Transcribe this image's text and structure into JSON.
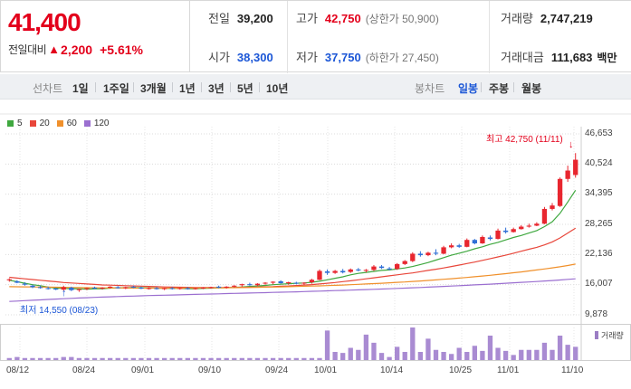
{
  "quote": {
    "price": "41,400",
    "change_label": "전일대비",
    "change_symbol": "▲",
    "change_amount": "2,200",
    "change_percent": "+5.61%"
  },
  "stats": {
    "prev_close_label": "전일",
    "prev_close": "39,200",
    "high_label": "고가",
    "high": "42,750",
    "upper_limit": "(상한가 50,900)",
    "volume_label": "거래량",
    "volume": "2,747,219",
    "open_label": "시가",
    "open": "38,300",
    "low_label": "저가",
    "low": "37,750",
    "lower_limit": "(하한가 27,450)",
    "turnover_label": "거래대금",
    "turnover": "111,683",
    "turnover_unit": "백만"
  },
  "toolbar": {
    "line_chart_label": "선차트",
    "periods": [
      "1일",
      "1주일",
      "3개월",
      "1년",
      "3년",
      "5년",
      "10년"
    ],
    "candle_chart_label": "봉차트",
    "candle_periods": [
      "일봉",
      "주봉",
      "월봉"
    ],
    "candle_selected": "일봉"
  },
  "legend": [
    {
      "name": "5",
      "color": "#3fa83f"
    },
    {
      "name": "20",
      "color": "#e8463a"
    },
    {
      "name": "60",
      "color": "#f0902b"
    },
    {
      "name": "120",
      "color": "#9b6fd0"
    }
  ],
  "annotations": {
    "max_label": "최고 42,750 (11/11)",
    "min_label": "최저 14,550 (08/23)",
    "max_arrow": "↓",
    "min_arrow": "↑"
  },
  "volume_label": "거래량",
  "chart_data": {
    "type": "candlestick",
    "y_ticks": [
      "46,653",
      "40,524",
      "34,395",
      "28,265",
      "22,136",
      "16,007",
      "9,878"
    ],
    "ylim": [
      9878,
      46653
    ],
    "x_ticks": [
      "08/12",
      "08/24",
      "09/01",
      "09/10",
      "09/24",
      "10/01",
      "10/14",
      "10/25",
      "11/01",
      "11/10"
    ],
    "candles": [
      {
        "o": 16900,
        "h": 17300,
        "l": 16600,
        "c": 17100
      },
      {
        "o": 16700,
        "h": 16900,
        "l": 16300,
        "c": 16400
      },
      {
        "o": 16200,
        "h": 16500,
        "l": 15800,
        "c": 16000
      },
      {
        "o": 15800,
        "h": 16000,
        "l": 15300,
        "c": 15500
      },
      {
        "o": 15500,
        "h": 15800,
        "l": 15200,
        "c": 15400
      },
      {
        "o": 15300,
        "h": 15600,
        "l": 15000,
        "c": 15200
      },
      {
        "o": 15200,
        "h": 15400,
        "l": 14900,
        "c": 15000
      },
      {
        "o": 15000,
        "h": 15800,
        "l": 14800,
        "c": 15500
      },
      {
        "o": 15400,
        "h": 15600,
        "l": 14700,
        "c": 14900
      },
      {
        "o": 14900,
        "h": 15200,
        "l": 14550,
        "c": 15100
      },
      {
        "o": 15200,
        "h": 15400,
        "l": 14900,
        "c": 15300
      },
      {
        "o": 15400,
        "h": 15600,
        "l": 15100,
        "c": 15200
      },
      {
        "o": 15200,
        "h": 15500,
        "l": 15000,
        "c": 15400
      },
      {
        "o": 15400,
        "h": 15700,
        "l": 15200,
        "c": 15600
      },
      {
        "o": 15500,
        "h": 15700,
        "l": 15200,
        "c": 15300
      },
      {
        "o": 15300,
        "h": 15600,
        "l": 15100,
        "c": 15500
      },
      {
        "o": 15600,
        "h": 15800,
        "l": 15300,
        "c": 15400
      },
      {
        "o": 15400,
        "h": 15600,
        "l": 15100,
        "c": 15200
      },
      {
        "o": 15200,
        "h": 15500,
        "l": 15000,
        "c": 15300
      },
      {
        "o": 15300,
        "h": 15500,
        "l": 15000,
        "c": 15100
      },
      {
        "o": 15100,
        "h": 15400,
        "l": 14900,
        "c": 15300
      },
      {
        "o": 15300,
        "h": 15500,
        "l": 15000,
        "c": 15200
      },
      {
        "o": 15200,
        "h": 15400,
        "l": 15000,
        "c": 15300
      },
      {
        "o": 15300,
        "h": 15500,
        "l": 15000,
        "c": 15100
      },
      {
        "o": 15100,
        "h": 15400,
        "l": 15000,
        "c": 15300
      },
      {
        "o": 15300,
        "h": 15500,
        "l": 15100,
        "c": 15400
      },
      {
        "o": 15400,
        "h": 15600,
        "l": 15200,
        "c": 15500
      },
      {
        "o": 15600,
        "h": 15800,
        "l": 15300,
        "c": 15400
      },
      {
        "o": 15400,
        "h": 15700,
        "l": 15200,
        "c": 15600
      },
      {
        "o": 15600,
        "h": 15900,
        "l": 15400,
        "c": 15800
      },
      {
        "o": 15900,
        "h": 16200,
        "l": 15600,
        "c": 16100
      },
      {
        "o": 16100,
        "h": 16400,
        "l": 15800,
        "c": 15900
      },
      {
        "o": 15900,
        "h": 16300,
        "l": 15700,
        "c": 16200
      },
      {
        "o": 16300,
        "h": 16500,
        "l": 16000,
        "c": 16400
      },
      {
        "o": 16400,
        "h": 16700,
        "l": 16100,
        "c": 16600
      },
      {
        "o": 16700,
        "h": 16900,
        "l": 16200,
        "c": 16300
      },
      {
        "o": 16300,
        "h": 16600,
        "l": 16000,
        "c": 16500
      },
      {
        "o": 16400,
        "h": 16600,
        "l": 16100,
        "c": 16300
      },
      {
        "o": 16300,
        "h": 16500,
        "l": 16000,
        "c": 16400
      },
      {
        "o": 16500,
        "h": 17200,
        "l": 16200,
        "c": 17000
      },
      {
        "o": 17000,
        "h": 19100,
        "l": 16900,
        "c": 18800
      },
      {
        "o": 18700,
        "h": 19100,
        "l": 18000,
        "c": 18400
      },
      {
        "o": 18400,
        "h": 19000,
        "l": 18200,
        "c": 18800
      },
      {
        "o": 18800,
        "h": 19200,
        "l": 18300,
        "c": 18500
      },
      {
        "o": 18600,
        "h": 19300,
        "l": 18400,
        "c": 19100
      },
      {
        "o": 19100,
        "h": 19400,
        "l": 18700,
        "c": 18900
      },
      {
        "o": 18900,
        "h": 19200,
        "l": 18500,
        "c": 19000
      },
      {
        "o": 19000,
        "h": 20000,
        "l": 18800,
        "c": 19700
      },
      {
        "o": 19700,
        "h": 20000,
        "l": 19200,
        "c": 19400
      },
      {
        "o": 19300,
        "h": 19600,
        "l": 18900,
        "c": 19100
      },
      {
        "o": 19200,
        "h": 20400,
        "l": 19000,
        "c": 20200
      },
      {
        "o": 20200,
        "h": 21000,
        "l": 20000,
        "c": 20800
      },
      {
        "o": 20800,
        "h": 22600,
        "l": 20600,
        "c": 22300
      },
      {
        "o": 22300,
        "h": 22800,
        "l": 21700,
        "c": 22000
      },
      {
        "o": 22000,
        "h": 22700,
        "l": 21800,
        "c": 22500
      },
      {
        "o": 22500,
        "h": 23200,
        "l": 22000,
        "c": 22300
      },
      {
        "o": 22300,
        "h": 23900,
        "l": 22200,
        "c": 23600
      },
      {
        "o": 23600,
        "h": 24400,
        "l": 23400,
        "c": 24000
      },
      {
        "o": 24000,
        "h": 24300,
        "l": 23500,
        "c": 23700
      },
      {
        "o": 23700,
        "h": 25400,
        "l": 23600,
        "c": 25100
      },
      {
        "o": 25100,
        "h": 25300,
        "l": 24200,
        "c": 24400
      },
      {
        "o": 24400,
        "h": 26000,
        "l": 24300,
        "c": 25700
      },
      {
        "o": 25600,
        "h": 26000,
        "l": 25000,
        "c": 25300
      },
      {
        "o": 25300,
        "h": 27400,
        "l": 25200,
        "c": 27000
      },
      {
        "o": 27000,
        "h": 27600,
        "l": 26400,
        "c": 26700
      },
      {
        "o": 26700,
        "h": 27600,
        "l": 26600,
        "c": 27300
      },
      {
        "o": 27300,
        "h": 28100,
        "l": 27200,
        "c": 27800
      },
      {
        "o": 27800,
        "h": 28400,
        "l": 27600,
        "c": 28000
      },
      {
        "o": 28000,
        "h": 28700,
        "l": 27900,
        "c": 28400
      },
      {
        "o": 28400,
        "h": 31800,
        "l": 28300,
        "c": 31400
      },
      {
        "o": 31400,
        "h": 32600,
        "l": 31100,
        "c": 32100
      },
      {
        "o": 32000,
        "h": 37800,
        "l": 31800,
        "c": 37500
      },
      {
        "o": 37500,
        "h": 40200,
        "l": 36900,
        "c": 39200
      },
      {
        "o": 38300,
        "h": 42750,
        "l": 37750,
        "c": 41400
      }
    ],
    "ma": {
      "5": [
        16900,
        16600,
        16300,
        16000,
        15800,
        15500,
        15300,
        15250,
        15200,
        15150,
        15100,
        15150,
        15200,
        15300,
        15350,
        15400,
        15400,
        15400,
        15350,
        15300,
        15250,
        15250,
        15250,
        15200,
        15200,
        15250,
        15300,
        15350,
        15400,
        15450,
        15550,
        15650,
        15750,
        15850,
        16000,
        16100,
        16200,
        16300,
        16350,
        16500,
        16700,
        17000,
        17300,
        17600,
        18000,
        18300,
        18500,
        18700,
        18900,
        19000,
        19200,
        19400,
        19700,
        20100,
        20500,
        21000,
        21500,
        22000,
        22400,
        22800,
        23300,
        23700,
        24200,
        24600,
        25100,
        25600,
        26000,
        26500,
        27000,
        27800,
        28800,
        30500,
        32800,
        35200
      ],
      "20": [
        17500,
        17350,
        17200,
        17050,
        16900,
        16750,
        16600,
        16450,
        16350,
        16250,
        16150,
        16050,
        15950,
        15900,
        15850,
        15800,
        15750,
        15700,
        15650,
        15600,
        15550,
        15500,
        15480,
        15460,
        15440,
        15430,
        15420,
        15410,
        15420,
        15440,
        15460,
        15490,
        15530,
        15570,
        15620,
        15680,
        15750,
        15830,
        15920,
        16020,
        16150,
        16300,
        16450,
        16620,
        16800,
        17000,
        17200,
        17400,
        17600,
        17800,
        18000,
        18200,
        18400,
        18650,
        18900,
        19150,
        19400,
        19700,
        20000,
        20300,
        20600,
        20950,
        21300,
        21650,
        22000,
        22400,
        22800,
        23200,
        23600,
        24100,
        24700,
        25500,
        26500,
        27500
      ],
      "60": [
        15600,
        15580,
        15560,
        15540,
        15520,
        15500,
        15480,
        15460,
        15440,
        15420,
        15400,
        15380,
        15360,
        15340,
        15330,
        15320,
        15310,
        15300,
        15300,
        15300,
        15300,
        15300,
        15310,
        15320,
        15330,
        15340,
        15350,
        15360,
        15380,
        15400,
        15420,
        15440,
        15470,
        15500,
        15530,
        15560,
        15600,
        15640,
        15680,
        15720,
        15770,
        15820,
        15870,
        15930,
        16000,
        16070,
        16140,
        16220,
        16300,
        16380,
        16470,
        16560,
        16660,
        16760,
        16870,
        16980,
        17100,
        17220,
        17350,
        17480,
        17620,
        17770,
        17920,
        18080,
        18250,
        18420,
        18600,
        18800,
        19000,
        19200,
        19420,
        19650,
        19900,
        20200
      ],
      "120": [
        12600,
        12680,
        12760,
        12840,
        12920,
        13000,
        13080,
        13160,
        13230,
        13300,
        13360,
        13420,
        13480,
        13540,
        13590,
        13640,
        13690,
        13740,
        13790,
        13830,
        13870,
        13910,
        13950,
        13990,
        14030,
        14070,
        14110,
        14150,
        14190,
        14230,
        14270,
        14310,
        14350,
        14390,
        14430,
        14470,
        14510,
        14550,
        14600,
        14650,
        14700,
        14750,
        14800,
        14850,
        14900,
        14950,
        15000,
        15060,
        15120,
        15180,
        15240,
        15300,
        15370,
        15440,
        15510,
        15580,
        15650,
        15720,
        15800,
        15880,
        15960,
        16040,
        16120,
        16200,
        16290,
        16380,
        16470,
        16560,
        16650,
        16750,
        16850,
        16960,
        17080,
        17200
      ]
    },
    "volume": [
      2,
      3,
      2,
      2,
      2,
      2,
      2,
      3,
      3,
      2,
      2,
      2,
      2,
      2,
      2,
      2,
      2,
      2,
      2,
      2,
      2,
      2,
      2,
      2,
      2,
      2,
      2,
      2,
      2,
      2,
      2,
      2,
      2,
      2,
      2,
      2,
      2,
      2,
      2,
      2,
      2,
      29,
      8,
      7,
      12,
      10,
      25,
      17,
      7,
      3,
      13,
      8,
      32,
      8,
      21,
      10,
      8,
      6,
      12,
      8,
      14,
      9,
      24,
      12,
      9,
      5,
      10,
      10,
      10,
      17,
      10,
      24,
      15,
      13
    ]
  }
}
